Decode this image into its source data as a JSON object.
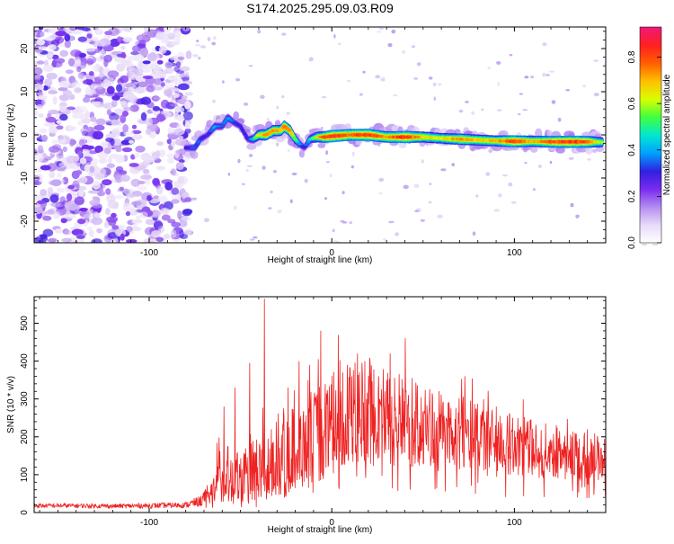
{
  "figure_title": "S174.2025.295.09.03.R09",
  "chart_data": [
    {
      "type": "heatmap",
      "xlabel": "Height of straight line (km)",
      "ylabel": "Frequency (Hz)",
      "xlim": [
        -163,
        150
      ],
      "ylim": [
        -25,
        25
      ],
      "x_ticks": [
        -100,
        0,
        100
      ],
      "x_tick_labels": [
        "-100",
        "0",
        "100"
      ],
      "y_ticks": [
        -20,
        -10,
        0,
        10,
        20
      ],
      "y_tick_labels": [
        "-20",
        "-10",
        "0",
        "10",
        "20"
      ],
      "grid": false,
      "colorbar": {
        "label": "Normalized spectral amplitude",
        "range": [
          0.0,
          0.93
        ],
        "ticks": [
          0.0,
          0.2,
          0.4,
          0.6,
          0.8
        ],
        "tick_labels": [
          "0.0",
          "0.2",
          "0.4",
          "0.6",
          "0.8"
        ],
        "colors": [
          "#ffffff",
          "#e8dcf8",
          "#b48ef0",
          "#7a2cf0",
          "#3020e0",
          "#00a0ff",
          "#00e8d0",
          "#40ff40",
          "#d8ff00",
          "#ffc000",
          "#ff6000",
          "#ff2020",
          "#f01878"
        ]
      },
      "noise_region": {
        "x_range": [
          -163,
          -78
        ],
        "y_range": [
          -25,
          25
        ],
        "amplitude_range": [
          0.05,
          0.3
        ]
      },
      "ridge": {
        "x": [
          -80,
          -75,
          -72,
          -68,
          -64,
          -60,
          -57,
          -54,
          -50,
          -46,
          -43,
          -40,
          -36,
          -32,
          -28,
          -26,
          -23,
          -20,
          -18,
          -15,
          -12,
          -8,
          -4,
          0,
          10,
          20,
          30,
          40,
          50,
          60,
          70,
          80,
          90,
          100,
          110,
          120,
          130,
          140,
          148
        ],
        "y": [
          -3,
          -3,
          -1,
          0,
          2,
          2,
          4,
          3,
          2,
          -1,
          -1,
          0,
          0,
          1,
          1,
          2,
          1,
          -1,
          -2,
          -3,
          -1,
          -0.5,
          -0.5,
          -0.3,
          0,
          0,
          -0.5,
          -0.5,
          -0.5,
          -0.8,
          -1,
          -1.2,
          -1.4,
          -1.5,
          -1.5,
          -1.6,
          -1.6,
          -1.6,
          -1.7
        ],
        "amplitude": [
          0.3,
          0.35,
          0.35,
          0.3,
          0.4,
          0.35,
          0.4,
          0.35,
          0.3,
          0.3,
          0.45,
          0.65,
          0.75,
          0.75,
          0.7,
          0.8,
          0.75,
          0.55,
          0.4,
          0.3,
          0.45,
          0.65,
          0.8,
          0.85,
          0.8,
          0.85,
          0.75,
          0.85,
          0.7,
          0.65,
          0.75,
          0.7,
          0.7,
          0.85,
          0.7,
          0.8,
          0.85,
          0.8,
          0.6
        ]
      }
    },
    {
      "type": "line",
      "xlabel": "Height of straight line (km)",
      "ylabel": "SNR (10 * v/v)",
      "xlim": [
        -163,
        150
      ],
      "ylim": [
        0,
        570
      ],
      "x_ticks": [
        -100,
        0,
        100
      ],
      "x_tick_labels": [
        "-100",
        "0",
        "100"
      ],
      "y_ticks": [
        0,
        100,
        200,
        300,
        400,
        500
      ],
      "y_tick_labels": [
        "0",
        "100",
        "200",
        "300",
        "400",
        "500"
      ],
      "grid": false,
      "series": [
        {
          "color": "#ee2222",
          "envelope": {
            "x": [
              -163,
              -140,
              -120,
              -100,
              -80,
              -72,
              -66,
              -62,
              -58,
              -54,
              -50,
              -46,
              -42,
              -38,
              -34,
              -30,
              -26,
              -22,
              -18,
              -14,
              -10,
              -6,
              -2,
              2,
              6,
              10,
              14,
              18,
              22,
              26,
              30,
              34,
              38,
              42,
              46,
              50,
              60,
              70,
              80,
              90,
              100,
              110,
              120,
              130,
              140,
              150
            ],
            "base": [
              18,
              18,
              17,
              18,
              20,
              30,
              55,
              90,
              110,
              100,
              95,
              95,
              100,
              110,
              120,
              130,
              145,
              165,
              175,
              185,
              200,
              210,
              230,
              245,
              255,
              262,
              268,
              270,
              268,
              265,
              260,
              255,
              250,
              245,
              240,
              232,
              220,
              208,
              198,
              188,
              178,
              170,
              162,
              155,
              148,
              142
            ],
            "amp": [
              6,
              6,
              6,
              7,
              8,
              15,
              40,
              70,
              80,
              80,
              85,
              85,
              90,
              95,
              100,
              105,
              110,
              115,
              120,
              125,
              125,
              130,
              130,
              135,
              135,
              135,
              135,
              135,
              130,
              130,
              125,
              125,
              120,
              118,
              115,
              110,
              100,
              95,
              90,
              85,
              80,
              75,
              72,
              70,
              65,
              60
            ]
          },
          "peaks": {
            "x": [
              -59,
              -53,
              -45,
              -37,
              -24,
              -18,
              -12,
              -6,
              6,
              14,
              18,
              32,
              44,
              90,
              140
            ],
            "y": [
              280,
              330,
              395,
              565,
              330,
              400,
              390,
              480,
              370,
              420,
              400,
              420,
              355,
              280,
              220
            ]
          }
        }
      ]
    }
  ]
}
